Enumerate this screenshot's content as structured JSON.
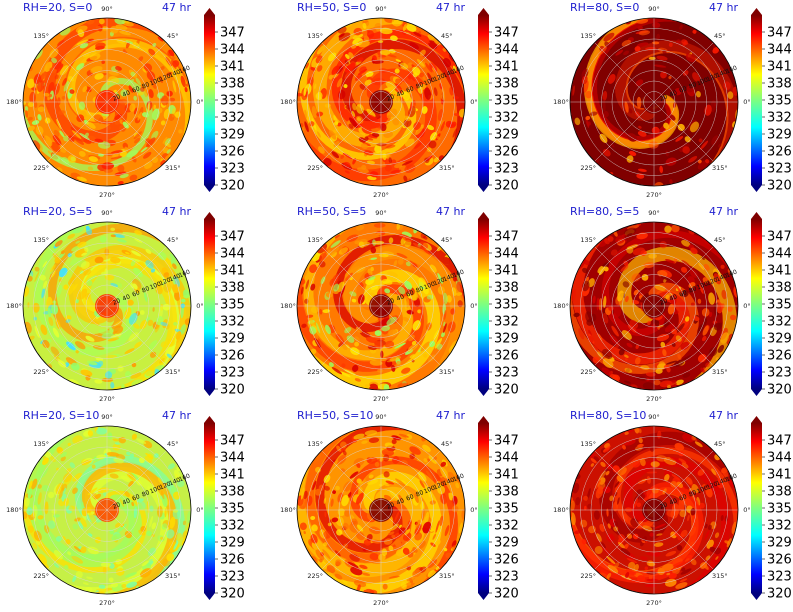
{
  "chart_data": [
    {
      "type": "heatmap",
      "title": "RH=20, S=0",
      "subtitle": "47 hr",
      "variant": "rh20_s0"
    },
    {
      "type": "heatmap",
      "title": "RH=50, S=0",
      "subtitle": "47 hr",
      "variant": "rh50_s0"
    },
    {
      "type": "heatmap",
      "title": "RH=80, S=0",
      "subtitle": "47 hr",
      "variant": "rh80_s0"
    },
    {
      "type": "heatmap",
      "title": "RH=20, S=5",
      "subtitle": "47 hr",
      "variant": "rh20_s5"
    },
    {
      "type": "heatmap",
      "title": "RH=50, S=5",
      "subtitle": "47 hr",
      "variant": "rh50_s5"
    },
    {
      "type": "heatmap",
      "title": "RH=80, S=5",
      "subtitle": "47 hr",
      "variant": "rh80_s5"
    },
    {
      "type": "heatmap",
      "title": "RH=20, S=10",
      "subtitle": "47 hr",
      "variant": "rh20_s10"
    },
    {
      "type": "heatmap",
      "title": "RH=50, S=10",
      "subtitle": "47 hr",
      "variant": "rh50_s10"
    },
    {
      "type": "heatmap",
      "title": "RH=80, S=10",
      "subtitle": "47 hr",
      "variant": "rh80_s10"
    }
  ],
  "polar_axes": {
    "angle_labels": [
      "0°",
      "45°",
      "90°",
      "135°",
      "180°",
      "225°",
      "270°",
      "315°"
    ],
    "radial_labels": [
      "20",
      "40",
      "60",
      "80",
      "100",
      "120",
      "140",
      "160"
    ]
  },
  "colorbar": {
    "ticks": [
      "347",
      "344",
      "341",
      "338",
      "335",
      "332",
      "329",
      "326",
      "323",
      "320"
    ],
    "min": 320,
    "max": 350,
    "colormap": "jet"
  }
}
